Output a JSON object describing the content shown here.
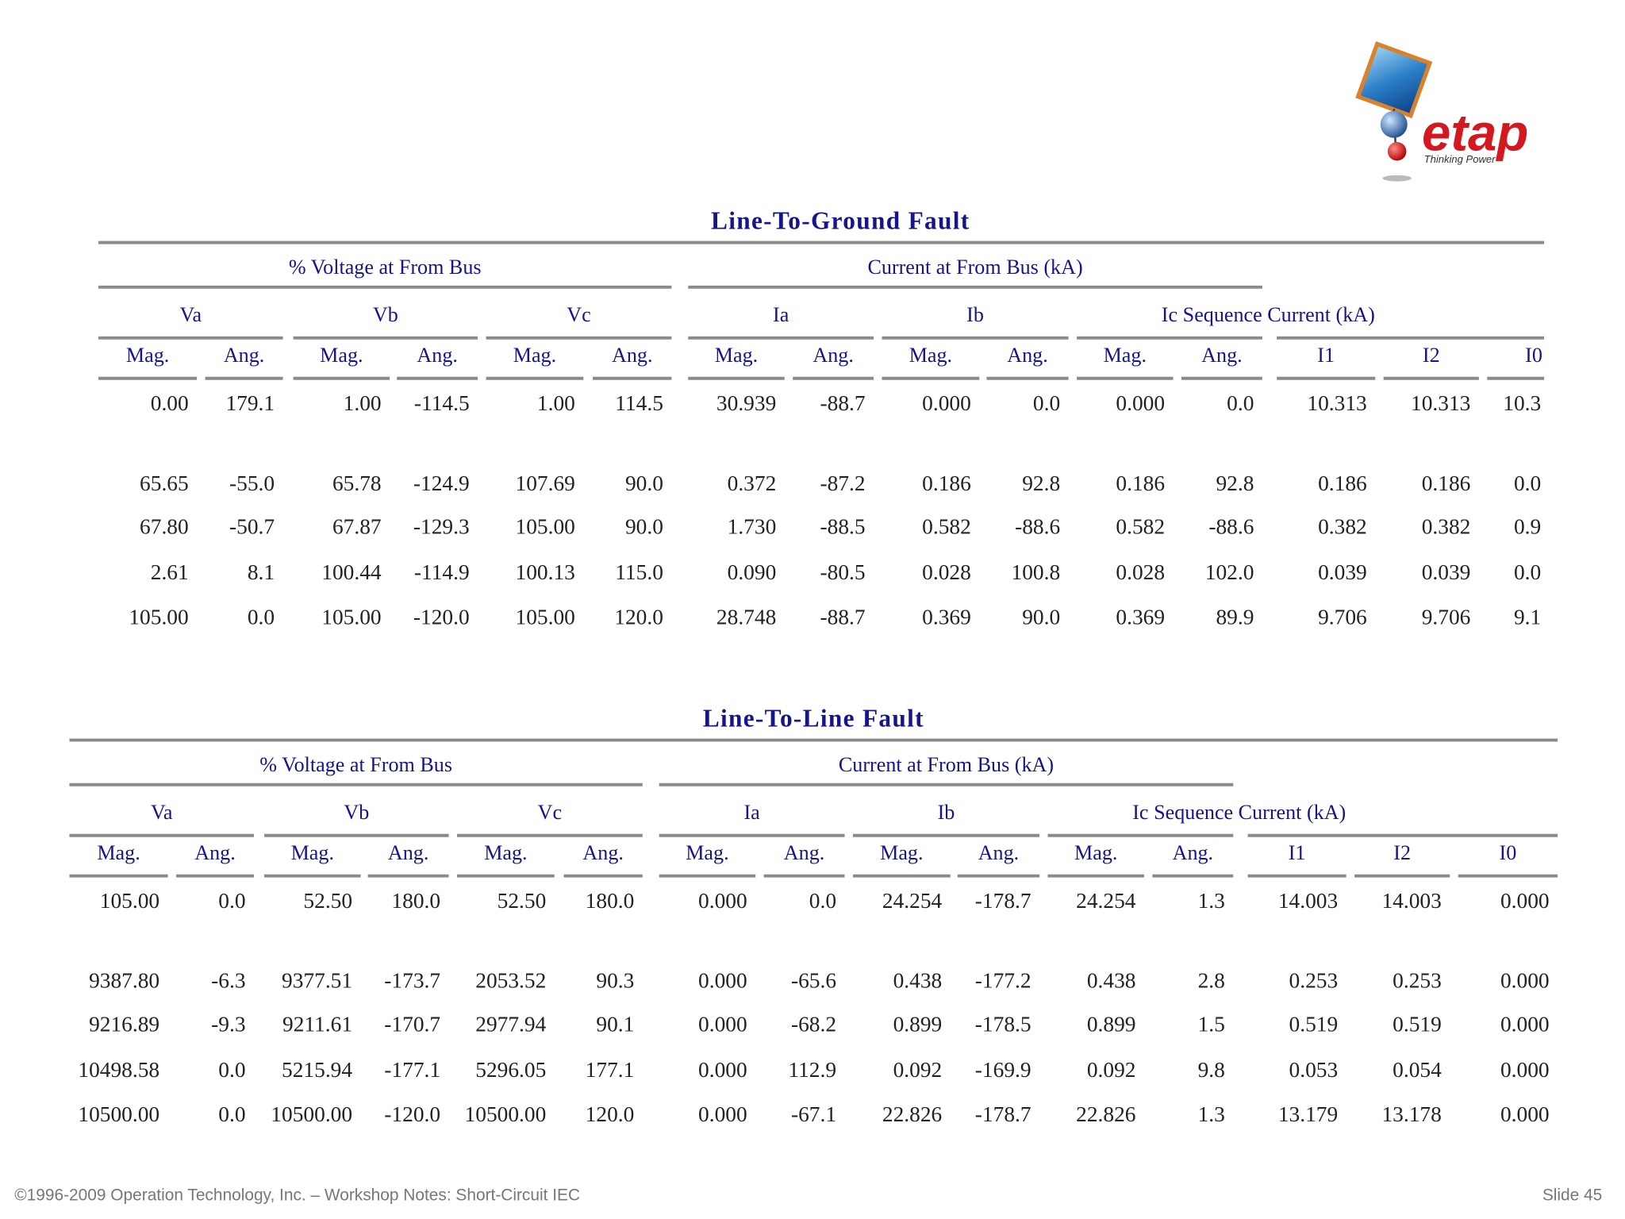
{
  "logo": {
    "wordmark": "etap",
    "tagline": "Thinking Power"
  },
  "tables": [
    {
      "title": "Line-To-Ground Fault",
      "groups": [
        "% Voltage at From Bus",
        "Current at From Bus (kA)"
      ],
      "subgroups": [
        "Va",
        "Vb",
        "Vc",
        "Ia",
        "Ib",
        "Ic",
        "Sequence Current (kA)"
      ],
      "columns": [
        "Mag.",
        "Ang.",
        "Mag.",
        "Ang.",
        "Mag.",
        "Ang.",
        "Mag.",
        "Ang.",
        "Mag.",
        "Ang.",
        "Mag.",
        "Ang.",
        "I1",
        "I2",
        "I0"
      ],
      "rows": [
        [
          "0.00",
          "179.1",
          "1.00",
          "-114.5",
          "1.00",
          "114.5",
          "30.939",
          "-88.7",
          "0.000",
          "0.0",
          "0.000",
          "0.0",
          "10.313",
          "10.313",
          "10.3"
        ],
        [
          "65.65",
          "-55.0",
          "65.78",
          "-124.9",
          "107.69",
          "90.0",
          "0.372",
          "-87.2",
          "0.186",
          "92.8",
          "0.186",
          "92.8",
          "0.186",
          "0.186",
          "0.0"
        ],
        [
          "67.80",
          "-50.7",
          "67.87",
          "-129.3",
          "105.00",
          "90.0",
          "1.730",
          "-88.5",
          "0.582",
          "-88.6",
          "0.582",
          "-88.6",
          "0.382",
          "0.382",
          "0.9"
        ],
        [
          "2.61",
          "8.1",
          "100.44",
          "-114.9",
          "100.13",
          "115.0",
          "0.090",
          "-80.5",
          "0.028",
          "100.8",
          "0.028",
          "102.0",
          "0.039",
          "0.039",
          "0.0"
        ],
        [
          "105.00",
          "0.0",
          "105.00",
          "-120.0",
          "105.00",
          "120.0",
          "28.748",
          "-88.7",
          "0.369",
          "90.0",
          "0.369",
          "89.9",
          "9.706",
          "9.706",
          "9.1"
        ]
      ]
    },
    {
      "title": "Line-To-Line Fault",
      "groups": [
        "% Voltage at From Bus",
        "Current at From Bus (kA)"
      ],
      "subgroups": [
        "Va",
        "Vb",
        "Vc",
        "Ia",
        "Ib",
        "Ic",
        "Sequence Current (kA)"
      ],
      "columns": [
        "Mag.",
        "Ang.",
        "Mag.",
        "Ang.",
        "Mag.",
        "Ang.",
        "Mag.",
        "Ang.",
        "Mag.",
        "Ang.",
        "Mag.",
        "Ang.",
        "I1",
        "I2",
        "I0"
      ],
      "rows": [
        [
          "105.00",
          "0.0",
          "52.50",
          "180.0",
          "52.50",
          "180.0",
          "0.000",
          "0.0",
          "24.254",
          "-178.7",
          "24.254",
          "1.3",
          "14.003",
          "14.003",
          "0.000"
        ],
        [
          "9387.80",
          "-6.3",
          "9377.51",
          "-173.7",
          "2053.52",
          "90.3",
          "0.000",
          "-65.6",
          "0.438",
          "-177.2",
          "0.438",
          "2.8",
          "0.253",
          "0.253",
          "0.000"
        ],
        [
          "9216.89",
          "-9.3",
          "9211.61",
          "-170.7",
          "2977.94",
          "90.1",
          "0.000",
          "-68.2",
          "0.899",
          "-178.5",
          "0.899",
          "1.5",
          "0.519",
          "0.519",
          "0.000"
        ],
        [
          "10498.58",
          "0.0",
          "5215.94",
          "-177.1",
          "5296.05",
          "177.1",
          "0.000",
          "112.9",
          "0.092",
          "-169.9",
          "0.092",
          "9.8",
          "0.053",
          "0.054",
          "0.000"
        ],
        [
          "10500.00",
          "0.0",
          "10500.00",
          "-120.0",
          "10500.00",
          "120.0",
          "0.000",
          "-67.1",
          "22.826",
          "-178.7",
          "22.826",
          "1.3",
          "13.179",
          "13.178",
          "0.000"
        ]
      ]
    }
  ],
  "footer": {
    "copyright": "©1996-2009 Operation Technology, Inc. – Workshop Notes: Short-Circuit IEC",
    "slide": "Slide 45"
  }
}
